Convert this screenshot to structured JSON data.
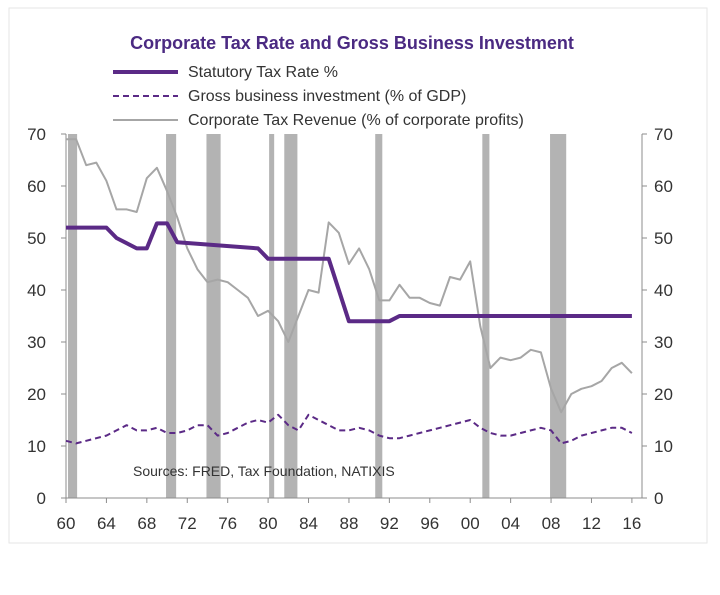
{
  "chart_data": {
    "type": "line",
    "title": "Corporate Tax Rate and Gross Business Investment",
    "source_note": "Sources: FRED, Tax Foundation, NATIXIS",
    "x_tick_labels": [
      "60",
      "64",
      "68",
      "72",
      "76",
      "80",
      "84",
      "88",
      "92",
      "96",
      "00",
      "04",
      "08",
      "12",
      "16"
    ],
    "x_tick_years": [
      1960,
      1964,
      1968,
      1972,
      1976,
      1980,
      1984,
      1988,
      1992,
      1996,
      2000,
      2004,
      2008,
      2012,
      2016
    ],
    "xlim": [
      1960,
      2017
    ],
    "ylim_left": [
      0,
      70
    ],
    "ylim_right": [
      0,
      70
    ],
    "y_ticks": [
      0,
      10,
      20,
      30,
      40,
      50,
      60,
      70
    ],
    "recession_shading": [
      [
        1960.2,
        1961.1
      ],
      [
        1969.9,
        1970.9
      ],
      [
        1973.9,
        1975.3
      ],
      [
        1980.1,
        1980.6
      ],
      [
        1981.6,
        1982.9
      ],
      [
        1990.6,
        1991.3
      ],
      [
        2001.2,
        2001.9
      ],
      [
        2007.9,
        2009.5
      ]
    ],
    "legend_placement": "top",
    "series": [
      {
        "name": "Statutory Tax Rate %",
        "style": "solid-thick",
        "color": "#5b2a86",
        "x": [
          1960,
          1964,
          1965,
          1967,
          1968,
          1969,
          1970,
          1971,
          1979,
          1980,
          1986,
          1987,
          1988,
          1992,
          1993,
          2016
        ],
        "values": [
          52,
          52,
          50,
          48,
          48,
          52.8,
          52.8,
          49.2,
          48,
          46,
          46,
          40,
          34,
          34,
          35,
          35
        ]
      },
      {
        "name": "Gross business investment (% of GDP)",
        "style": "dashed",
        "color": "#5b2a86",
        "x": [
          1960,
          1961,
          1962,
          1963,
          1964,
          1965,
          1966,
          1967,
          1968,
          1969,
          1970,
          1971,
          1972,
          1973,
          1974,
          1975,
          1976,
          1977,
          1978,
          1979,
          1980,
          1981,
          1982,
          1983,
          1984,
          1985,
          1986,
          1987,
          1988,
          1989,
          1990,
          1991,
          1992,
          1993,
          1994,
          1995,
          1996,
          1997,
          1998,
          1999,
          2000,
          2001,
          2002,
          2003,
          2004,
          2005,
          2006,
          2007,
          2008,
          2009,
          2010,
          2011,
          2012,
          2013,
          2014,
          2015,
          2016
        ],
        "values": [
          11,
          10.5,
          11,
          11.5,
          12,
          13,
          14,
          13,
          13,
          13.5,
          12.5,
          12.5,
          13,
          14,
          14,
          12,
          12.5,
          13.5,
          14.5,
          15,
          14.5,
          16,
          14,
          13,
          16,
          15,
          14,
          13,
          13,
          13.5,
          13,
          12,
          11.5,
          11.5,
          12,
          12.5,
          13,
          13.5,
          14,
          14.5,
          15,
          13.5,
          12.5,
          12,
          12,
          12.5,
          13,
          13.5,
          13,
          10.5,
          11,
          12,
          12.5,
          13,
          13.5,
          13.5,
          12.5
        ]
      },
      {
        "name": "Corporate Tax Revenue (% of corporate profits)",
        "style": "solid-thin",
        "color": "#a6a6a6",
        "x": [
          1960,
          1961,
          1962,
          1963,
          1964,
          1965,
          1966,
          1967,
          1968,
          1969,
          1970,
          1971,
          1972,
          1973,
          1974,
          1975,
          1976,
          1977,
          1978,
          1979,
          1980,
          1981,
          1982,
          1983,
          1984,
          1985,
          1986,
          1987,
          1988,
          1989,
          1990,
          1991,
          1992,
          1993,
          1994,
          1995,
          1996,
          1997,
          1998,
          1999,
          2000,
          2001,
          2002,
          2003,
          2004,
          2005,
          2006,
          2007,
          2008,
          2009,
          2010,
          2011,
          2012,
          2013,
          2014,
          2015,
          2016
        ],
        "values": [
          69,
          69,
          64,
          64.5,
          61,
          55.5,
          55.5,
          55,
          61.5,
          63.5,
          59,
          54,
          48,
          44,
          41.5,
          42,
          41.5,
          40,
          38.5,
          35,
          36,
          34,
          30,
          35,
          40,
          39.5,
          53,
          51,
          45,
          48,
          44,
          38,
          38,
          41,
          38.5,
          38.5,
          37.5,
          37,
          42.5,
          42,
          45.5,
          33,
          25,
          27,
          26.5,
          27,
          28.5,
          28,
          21,
          16.5,
          20,
          21,
          21.5,
          22.5,
          25,
          26,
          24
        ]
      }
    ]
  }
}
